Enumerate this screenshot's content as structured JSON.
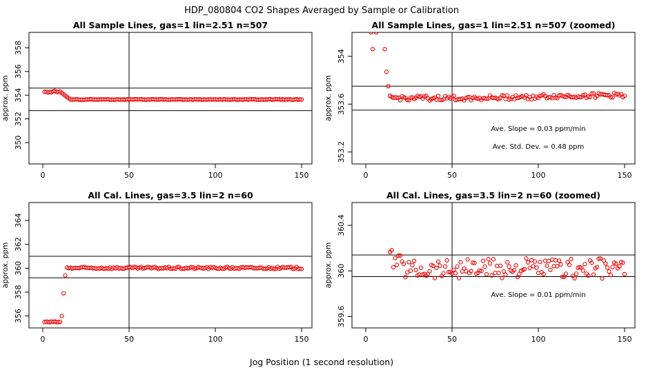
{
  "figure": {
    "title": "HDP_080804  CO2 Shapes Averaged by Sample or Calibration",
    "xlabel": "Jog Position (1 second resolution)"
  },
  "colors": {
    "points": "#ee0000",
    "lines": "#000000"
  },
  "chart_data": [
    {
      "type": "scatter",
      "title": "All Sample Lines, gas=1 lin=2.51 n=507",
      "ylabel": "approx. ppm",
      "xlim": [
        -8,
        156
      ],
      "ylim": [
        348.2,
        359.3
      ],
      "xticks": [
        0,
        50,
        100,
        150
      ],
      "yticks": [
        350,
        352,
        354,
        356,
        358
      ],
      "vline": 50,
      "hlines": [
        352.7,
        354.6
      ],
      "annotations": [],
      "shape": "sample",
      "series": [
        {
          "x": [
            1,
            150
          ],
          "y": [
            354.3,
            353.62
          ]
        }
      ]
    },
    {
      "type": "scatter",
      "title": "All Sample Lines, gas=1 lin=2.51 n=507 (zoomed)",
      "ylabel": "approx. ppm",
      "xlim": [
        -8,
        156
      ],
      "ylim": [
        353.1,
        354.2
      ],
      "xticks": [
        0,
        50,
        100,
        150
      ],
      "yticks": [
        353.2,
        353.6,
        354.0
      ],
      "vline": 50,
      "hlines": [
        353.75,
        353.55
      ],
      "annotations": [
        "Ave. Slope =  0.03  ppm/min",
        "Ave. Std. Dev. =  0.48  ppm"
      ],
      "shape": "sample-zoom",
      "series": [
        {
          "x": [
            1,
            150
          ],
          "y": [
            354.2,
            353.66
          ]
        }
      ]
    },
    {
      "type": "scatter",
      "title": "All Cal. Lines, gas=3.5 lin=2 n=60",
      "ylabel": "approx. ppm",
      "xlim": [
        -8,
        156
      ],
      "ylim": [
        355.0,
        365.5
      ],
      "xticks": [
        0,
        50,
        100,
        150
      ],
      "yticks": [
        356,
        358,
        360,
        362,
        364
      ],
      "vline": 50,
      "hlines": [
        361.0,
        359.2
      ],
      "annotations": [],
      "shape": "cal",
      "series": [
        {
          "x": [
            1,
            150
          ],
          "y": [
            355.5,
            360.0
          ]
        }
      ]
    },
    {
      "type": "scatter",
      "title": "All Cal. Lines, gas=3.5 lin=2 n=60 (zoomed)",
      "ylabel": "approx. ppm",
      "xlim": [
        -8,
        156
      ],
      "ylim": [
        359.5,
        360.6
      ],
      "xticks": [
        0,
        50,
        100,
        150
      ],
      "yticks": [
        359.6,
        360.0,
        360.4
      ],
      "vline": 50,
      "hlines": [
        360.14,
        359.95
      ],
      "annotations": [
        "Ave. Slope =  0.01  ppm/min"
      ],
      "shape": "cal-zoom",
      "series": [
        {
          "x": [
            14,
            150
          ],
          "y": [
            360.2,
            360.02
          ]
        }
      ]
    }
  ]
}
